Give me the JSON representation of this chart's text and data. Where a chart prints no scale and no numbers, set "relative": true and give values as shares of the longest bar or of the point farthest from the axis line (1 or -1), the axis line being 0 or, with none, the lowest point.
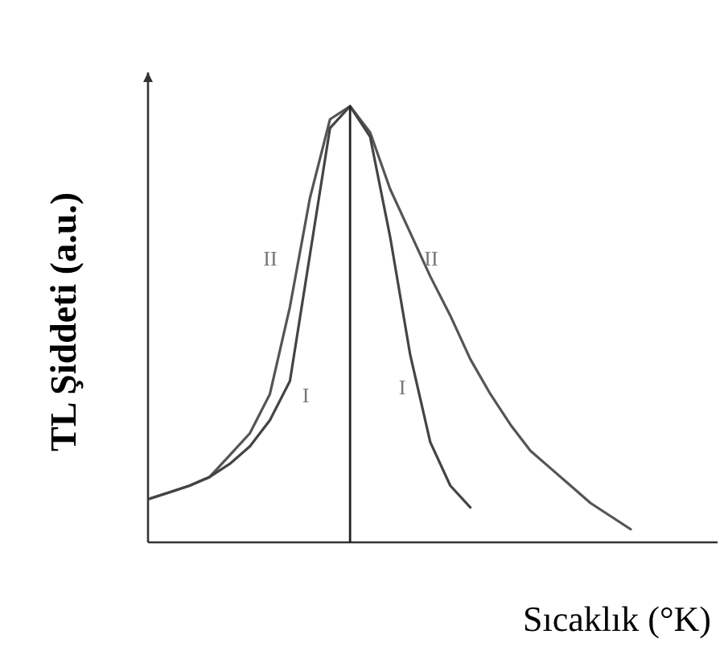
{
  "chart_data": {
    "type": "line",
    "relative": true,
    "xlabel": "Sıcaklık (°K)",
    "ylabel": "TL Şiddeti (a.u.)",
    "line_style": "solid",
    "categories": [
      null,
      null,
      null,
      null,
      null,
      null,
      null,
      null,
      null,
      null,
      null,
      null,
      null,
      null,
      null,
      null,
      null,
      null,
      null,
      null,
      null,
      null,
      null,
      null,
      null
    ],
    "series": [
      {
        "color": "#555555",
        "values": [
          0.1,
          0.115,
          0.13,
          0.15,
          0.2,
          0.25,
          0.34,
          0.54,
          0.79,
          0.97,
          1,
          0.94,
          0.81,
          0.71,
          0.61,
          0.52,
          0.42,
          0.34,
          0.27,
          0.21,
          0.17,
          0.13,
          0.09,
          0.06,
          0.03
        ]
      },
      {
        "color": "#444444",
        "values": [
          0.1,
          0.115,
          0.13,
          0.15,
          0.18,
          0.22,
          0.28,
          0.37,
          0.66,
          0.95,
          1,
          0.93,
          0.7,
          0.43,
          0.23,
          0.13,
          0.08,
          null,
          null,
          null,
          null,
          null,
          null,
          null,
          null
        ]
      }
    ],
    "annotations": [
      "II",
      "II",
      "I",
      "I"
    ]
  }
}
